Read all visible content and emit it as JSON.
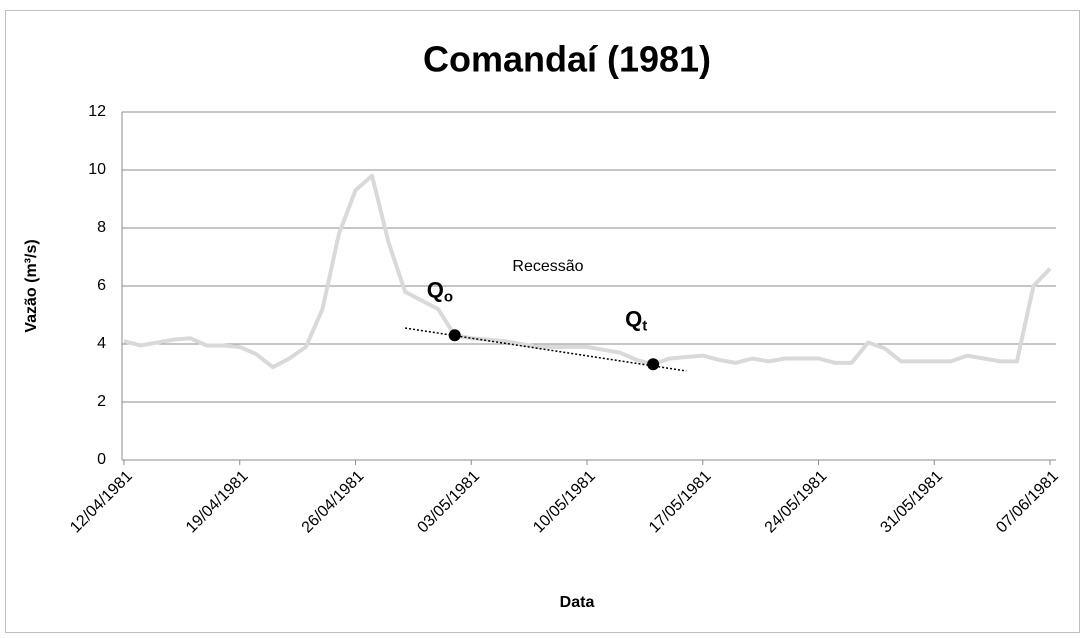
{
  "chart_data": {
    "type": "line",
    "title": "Comandaí (1981)",
    "x_label": "Data",
    "y_label": "Vazão (m³/s)",
    "categories": [
      "12/04/1981",
      null,
      null,
      null,
      null,
      null,
      null,
      "19/04/1981",
      null,
      null,
      null,
      null,
      null,
      null,
      "26/04/1981",
      null,
      null,
      null,
      null,
      null,
      null,
      "03/05/1981",
      null,
      null,
      null,
      null,
      null,
      null,
      "10/05/1981",
      null,
      null,
      null,
      null,
      null,
      null,
      "17/05/1981",
      null,
      null,
      null,
      null,
      null,
      null,
      "24/05/1981",
      null,
      null,
      null,
      null,
      null,
      null,
      "31/05/1981",
      null,
      null,
      null,
      null,
      null,
      null,
      "07/06/1981"
    ],
    "series": [
      {
        "name": "Vazão",
        "color": "#d9d9d9",
        "values": [
          4.1,
          3.95,
          4.05,
          4.15,
          4.2,
          3.95,
          3.95,
          3.9,
          3.65,
          3.2,
          3.5,
          3.9,
          5.2,
          7.8,
          9.3,
          9.8,
          7.5,
          5.8,
          5.5,
          5.2,
          4.3,
          4.2,
          4.15,
          4.1,
          4.0,
          3.9,
          3.9,
          3.9,
          3.9,
          3.8,
          3.7,
          3.45,
          3.3,
          3.5,
          3.55,
          3.6,
          3.45,
          3.35,
          3.5,
          3.4,
          3.5,
          3.5,
          3.5,
          3.35,
          3.35,
          4.05,
          3.85,
          3.4,
          3.4,
          3.4,
          3.4,
          3.6,
          3.5,
          3.4,
          3.4,
          6.0,
          6.6
        ]
      }
    ],
    "points": [
      {
        "index": 20,
        "label": "Q",
        "subscript": "o"
      },
      {
        "index": 32,
        "label": "Q",
        "subscript": "t"
      }
    ],
    "trendline": {
      "x": [
        17,
        34
      ],
      "values": [
        4.55,
        3.07
      ],
      "color": "#000000"
    },
    "annotation": "Recessão",
    "ylim": [
      0,
      12
    ],
    "yticks": [
      0,
      2,
      4,
      6,
      8,
      10,
      12
    ],
    "grid": true
  }
}
